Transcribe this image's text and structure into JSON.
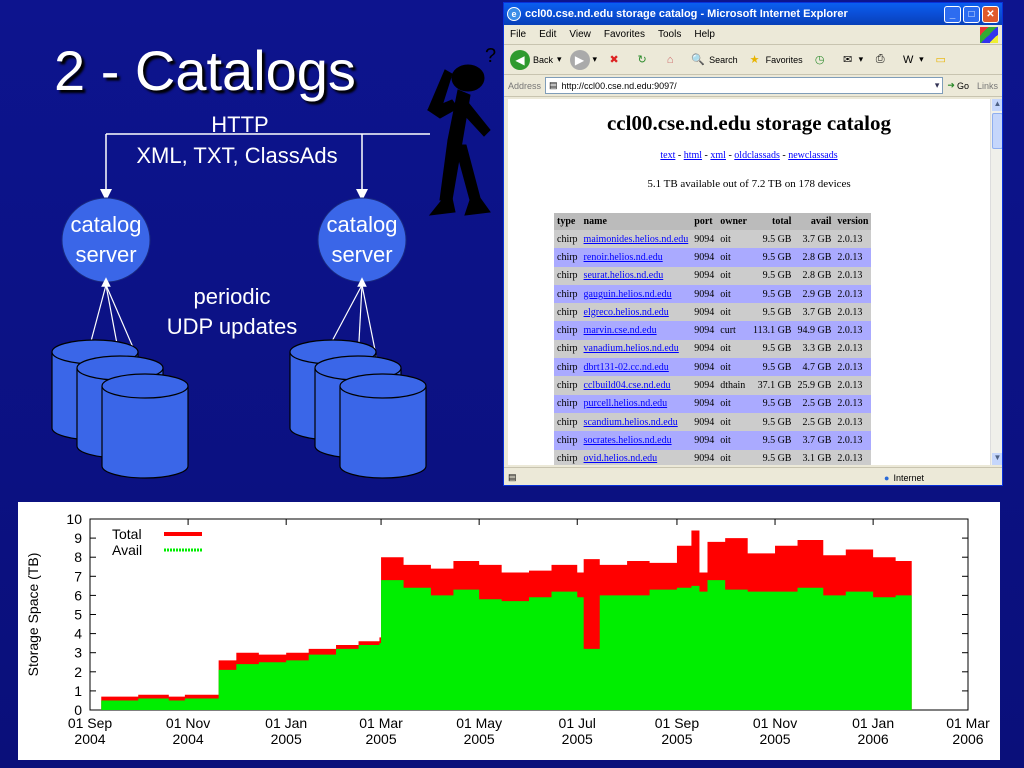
{
  "slide": {
    "title": "2 - Catalogs"
  },
  "diagram": {
    "http_label": "HTTP",
    "formats_label": "XML, TXT, ClassAds",
    "server_left": [
      "catalog",
      "server"
    ],
    "server_right": [
      "catalog",
      "server"
    ],
    "periodic_label": "periodic",
    "udp_label": "UDP updates"
  },
  "browser": {
    "window_title": "ccl00.cse.nd.edu storage catalog - Microsoft Internet Explorer",
    "menu": [
      "File",
      "Edit",
      "View",
      "Favorites",
      "Tools",
      "Help"
    ],
    "toolbar": {
      "back": "Back",
      "search": "Search",
      "favorites": "Favorites"
    },
    "address": {
      "label": "Address",
      "url": "http://ccl00.cse.nd.edu:9097/",
      "go": "Go",
      "links": "Links"
    },
    "status": {
      "zone": "Internet"
    },
    "page": {
      "heading": "ccl00.cse.nd.edu storage catalog",
      "links": [
        "text",
        "html",
        "xml",
        "oldclassads",
        "newclassads"
      ],
      "summary": "5.1 TB available out of 7.2 TB on 178 devices",
      "columns": [
        "type",
        "name",
        "port",
        "owner",
        "total",
        "avail",
        "version"
      ],
      "rows": [
        [
          "chirp",
          "maimonides.helios.nd.edu",
          "9094",
          "oit",
          "9.5 GB",
          "3.7 GB",
          "2.0.13"
        ],
        [
          "chirp",
          "renoir.helios.nd.edu",
          "9094",
          "oit",
          "9.5 GB",
          "2.8 GB",
          "2.0.13"
        ],
        [
          "chirp",
          "seurat.helios.nd.edu",
          "9094",
          "oit",
          "9.5 GB",
          "2.8 GB",
          "2.0.13"
        ],
        [
          "chirp",
          "gauguin.helios.nd.edu",
          "9094",
          "oit",
          "9.5 GB",
          "2.9 GB",
          "2.0.13"
        ],
        [
          "chirp",
          "elgreco.helios.nd.edu",
          "9094",
          "oit",
          "9.5 GB",
          "3.7 GB",
          "2.0.13"
        ],
        [
          "chirp",
          "marvin.cse.nd.edu",
          "9094",
          "curt",
          "113.1 GB",
          "94.9 GB",
          "2.0.13"
        ],
        [
          "chirp",
          "vanadium.helios.nd.edu",
          "9094",
          "oit",
          "9.5 GB",
          "3.3 GB",
          "2.0.13"
        ],
        [
          "chirp",
          "dbrt131-02.cc.nd.edu",
          "9094",
          "oit",
          "9.5 GB",
          "4.7 GB",
          "2.0.13"
        ],
        [
          "chirp",
          "cclbuild04.cse.nd.edu",
          "9094",
          "dthain",
          "37.1 GB",
          "25.9 GB",
          "2.0.13"
        ],
        [
          "chirp",
          "purcell.helios.nd.edu",
          "9094",
          "oit",
          "9.5 GB",
          "2.5 GB",
          "2.0.13"
        ],
        [
          "chirp",
          "scandium.helios.nd.edu",
          "9094",
          "oit",
          "9.5 GB",
          "2.5 GB",
          "2.0.13"
        ],
        [
          "chirp",
          "socrates.helios.nd.edu",
          "9094",
          "oit",
          "9.5 GB",
          "3.7 GB",
          "2.0.13"
        ],
        [
          "chirp",
          "ovid.helios.nd.edu",
          "9094",
          "oit",
          "9.5 GB",
          "3.1 GB",
          "2.0.13"
        ]
      ]
    }
  },
  "chart_data": {
    "type": "area",
    "ylabel": "Storage Space (TB)",
    "xlabel": "",
    "ylim": [
      0,
      10
    ],
    "yticks": [
      "0",
      "1",
      "2",
      "3",
      "4",
      "5",
      "6",
      "7",
      "8",
      "9",
      "10"
    ],
    "xticks": [
      [
        "01 Sep",
        "2004"
      ],
      [
        "01 Nov",
        "2004"
      ],
      [
        "01 Jan",
        "2005"
      ],
      [
        "01 Mar",
        "2005"
      ],
      [
        "01 May",
        "2005"
      ],
      [
        "01 Jul",
        "2005"
      ],
      [
        "01 Sep",
        "2005"
      ],
      [
        "01 Nov",
        "2005"
      ],
      [
        "01 Jan",
        "2006"
      ],
      [
        "01 Mar",
        "2006"
      ]
    ],
    "x": [
      "2004-09-08",
      "2004-09-20",
      "2004-10-01",
      "2004-10-20",
      "2004-10-30",
      "2004-11-10",
      "2004-11-20",
      "2004-12-01",
      "2004-12-15",
      "2005-01-01",
      "2005-01-15",
      "2005-02-01",
      "2005-02-15",
      "2005-02-28",
      "2005-03-01",
      "2005-03-15",
      "2005-04-01",
      "2005-04-15",
      "2005-05-01",
      "2005-05-15",
      "2005-06-01",
      "2005-06-15",
      "2005-07-01",
      "2005-07-05",
      "2005-07-15",
      "2005-08-01",
      "2005-08-15",
      "2005-09-01",
      "2005-09-10",
      "2005-09-15",
      "2005-09-20",
      "2005-10-01",
      "2005-10-15",
      "2005-11-01",
      "2005-11-15",
      "2005-12-01",
      "2005-12-15",
      "2006-01-01",
      "2006-01-15",
      "2006-01-25"
    ],
    "series": [
      {
        "name": "Total",
        "color": "#ff0000",
        "values": [
          0.7,
          0.7,
          0.8,
          0.7,
          0.8,
          0.8,
          2.6,
          3.0,
          2.9,
          3.0,
          3.2,
          3.4,
          3.6,
          3.8,
          8.0,
          7.6,
          7.4,
          7.8,
          7.6,
          7.2,
          7.3,
          7.6,
          7.2,
          7.9,
          7.6,
          7.8,
          7.7,
          8.6,
          9.4,
          7.2,
          8.8,
          9.0,
          8.2,
          8.6,
          8.9,
          8.1,
          8.4,
          8.0,
          7.8,
          7.7
        ]
      },
      {
        "name": "Avail",
        "color": "#00ee00",
        "values": [
          0.5,
          0.5,
          0.6,
          0.5,
          0.6,
          0.6,
          2.1,
          2.4,
          2.5,
          2.6,
          2.9,
          3.2,
          3.4,
          3.5,
          6.8,
          6.4,
          6.0,
          6.3,
          5.8,
          5.7,
          5.9,
          6.2,
          5.9,
          3.2,
          6.0,
          6.0,
          6.3,
          6.4,
          6.5,
          6.2,
          6.8,
          6.3,
          6.2,
          6.2,
          6.4,
          6.0,
          6.2,
          5.9,
          6.0,
          5.8
        ]
      }
    ],
    "legend": "top-left"
  }
}
